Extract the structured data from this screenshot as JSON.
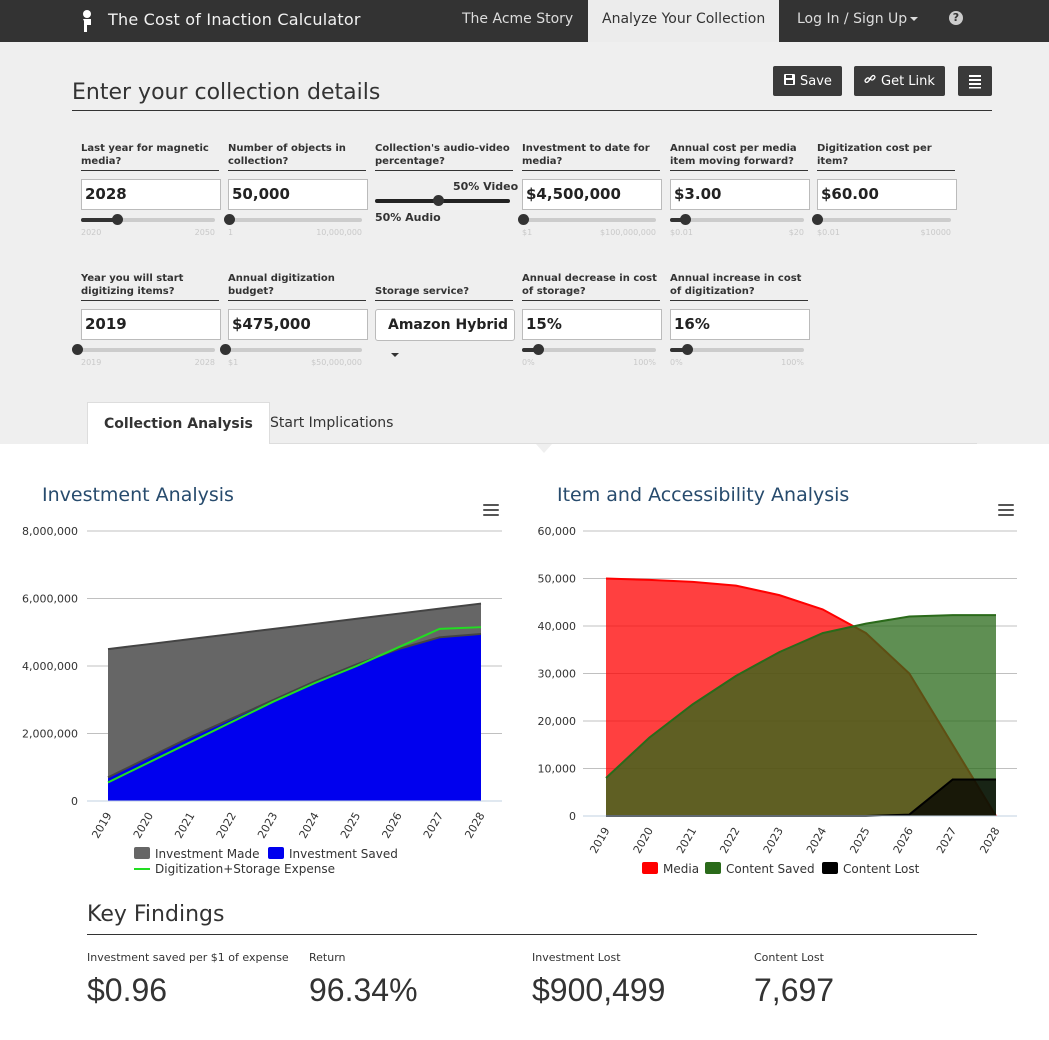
{
  "nav": {
    "brand": "The Cost of Inaction Calculator",
    "items": [
      "The Acme Story",
      "Analyze Your Collection",
      "Log In / Sign Up"
    ],
    "help": "?"
  },
  "page": {
    "title": "Enter your collection details",
    "save_label": "Save",
    "getlink_label": "Get Link"
  },
  "fields": [
    {
      "label": "Last year for magnetic media?",
      "value": "2028",
      "min": "2020",
      "max": "2050",
      "level": 0.27
    },
    {
      "label": "Number of objects in collection?",
      "value": "50,000",
      "min": "1",
      "max": "10,000,000",
      "level": 0.005
    },
    {
      "label": "Investment to date for media?",
      "value": "$4,500,000",
      "min": "$1",
      "max": "$100,000,000",
      "level": 0.045
    },
    {
      "label": "Annual cost per media item moving forward?",
      "value": "$3.00",
      "min": "$0.01",
      "max": "$20",
      "level": 0.15
    },
    {
      "label": "Digitization cost per item?",
      "value": "$60.00",
      "min": "$0.01",
      "max": "$10000",
      "level": 0.006
    },
    {
      "label": "Year you will start digitizing items?",
      "value": "2019",
      "min": "2019",
      "max": "2028",
      "level": 0.0
    },
    {
      "label": "Annual digitization budget?",
      "value": "$475,000",
      "min": "$1",
      "max": "$50,000,000",
      "level": 0.01
    },
    {
      "label": "Annual decrease in cost of storage?",
      "value": "15%",
      "min": "0%",
      "max": "100%",
      "level": 0.15
    },
    {
      "label": "Annual increase in cost of digitization?",
      "value": "16%",
      "min": "0%",
      "max": "100%",
      "level": 0.16
    }
  ],
  "av": {
    "label": "Collection's audio-video percentage?",
    "video": "50% Video",
    "audio": "50% Audio",
    "level": 0.5
  },
  "storage": {
    "label": "Storage service?",
    "value": "Amazon Hybrid"
  },
  "tabs": [
    "Collection Analysis",
    "Start Implications"
  ],
  "chart_data": [
    {
      "type": "area",
      "title": "Investment Analysis",
      "x": [
        "2019",
        "2020",
        "2021",
        "2022",
        "2023",
        "2024",
        "2025",
        "2026",
        "2027",
        "2028"
      ],
      "ylim": [
        0,
        8000000
      ],
      "yticks": [
        "0",
        "2,000,000",
        "4,000,000",
        "6,000,000",
        "8,000,000"
      ],
      "series": [
        {
          "name": "Investment Made",
          "color": "#666666",
          "values": [
            4500000,
            4650000,
            4800000,
            4950000,
            5100000,
            5250000,
            5400000,
            5550000,
            5700000,
            5850000
          ]
        },
        {
          "name": "Investment Saved",
          "color": "#0000ee",
          "values": [
            700000,
            1300000,
            1900000,
            2450000,
            3000000,
            3550000,
            4050000,
            4500000,
            4850000,
            4950000
          ]
        },
        {
          "name": "Digitization+Storage Expense",
          "color": "#22dd22",
          "values": [
            550000,
            1150000,
            1750000,
            2350000,
            2950000,
            3500000,
            4000000,
            4550000,
            5100000,
            5150000
          ]
        }
      ],
      "legend": "bottom"
    },
    {
      "type": "area",
      "title": "Item and Accessibility Analysis",
      "x": [
        "2019",
        "2020",
        "2021",
        "2022",
        "2023",
        "2024",
        "2025",
        "2026",
        "2027",
        "2028"
      ],
      "ylim": [
        0,
        60000
      ],
      "yticks": [
        "0",
        "10,000",
        "20,000",
        "30,000",
        "40,000",
        "50,000",
        "60,000"
      ],
      "series": [
        {
          "name": "Media",
          "color": "#ff0000",
          "values": [
            50000,
            49700,
            49300,
            48500,
            46500,
            43500,
            38500,
            30000,
            15000,
            0
          ]
        },
        {
          "name": "Content Saved",
          "color": "#2a6a1a",
          "values": [
            8000,
            16500,
            23500,
            29500,
            34500,
            38500,
            40500,
            42000,
            42300,
            42300
          ]
        },
        {
          "name": "Content Lost",
          "color": "#000000",
          "values": [
            0,
            0,
            0,
            0,
            0,
            0,
            0,
            300,
            7697,
            7697
          ]
        }
      ],
      "legend": "bottom"
    }
  ],
  "key_findings": {
    "title": "Key Findings",
    "items": [
      {
        "label": "Investment saved per $1 of expense",
        "value": "$0.96"
      },
      {
        "label": "Return",
        "value": "96.34%"
      },
      {
        "label": "Investment Lost",
        "value": "$900,499"
      },
      {
        "label": "Content Lost",
        "value": "7,697"
      }
    ]
  }
}
